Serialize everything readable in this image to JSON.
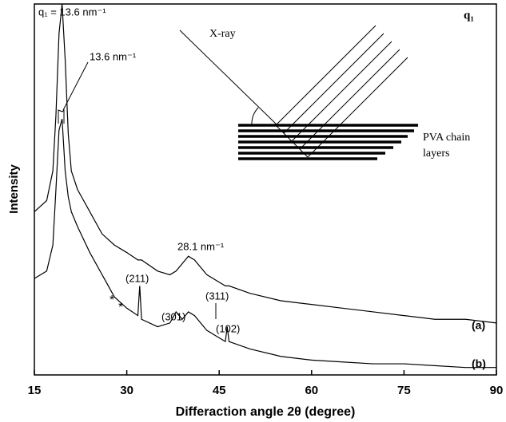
{
  "chart_data": {
    "type": "line",
    "x_label": "Differaction angle 2θ (degree)",
    "y_label": "Intensity",
    "x": [
      15,
      17,
      18,
      18.5,
      19,
      19.5,
      20,
      20.5,
      21,
      22,
      24,
      26,
      28,
      30,
      31.8,
      32.1,
      32.4,
      35,
      37,
      38,
      39,
      40,
      41,
      43,
      45,
      46,
      46.3,
      46.6,
      50,
      55,
      60,
      65,
      70,
      75,
      80,
      85,
      90
    ],
    "series": [
      {
        "name": "(a)",
        "color": "#000000",
        "values": [
          44,
          47,
          55,
          70,
          92,
          100,
          85,
          65,
          55,
          50,
          44,
          38,
          35,
          33,
          31,
          31,
          31,
          28,
          27,
          28,
          30,
          32,
          31,
          27,
          25,
          24,
          24,
          24,
          22,
          20,
          19,
          18,
          17,
          16,
          15,
          15,
          14
        ]
      },
      {
        "name": "(b)",
        "color": "#000000",
        "values": [
          26,
          28,
          35,
          50,
          66,
          69,
          55,
          48,
          44,
          40,
          33,
          27,
          21,
          18,
          16,
          24,
          15,
          13,
          14,
          17,
          15,
          17,
          16,
          12,
          10,
          9,
          13,
          9,
          7,
          5,
          4,
          3.5,
          3,
          3,
          2.5,
          2,
          2
        ]
      }
    ],
    "xlim": [
      15,
      90
    ],
    "xticks": [
      15,
      30,
      45,
      60,
      75,
      90
    ],
    "ylim": [
      0,
      100
    ],
    "annotations": [
      "q₁ = 13.6 nm⁻¹",
      "13.6 nm⁻¹",
      "28.1 nm⁻¹",
      "(211)",
      "*",
      "*",
      "(301)",
      "(311)",
      "(102)"
    ],
    "inset": {
      "ray": "X-ray",
      "vector": "q₁",
      "layers_line1": "PVA chain",
      "layers_line2": "layers"
    }
  }
}
